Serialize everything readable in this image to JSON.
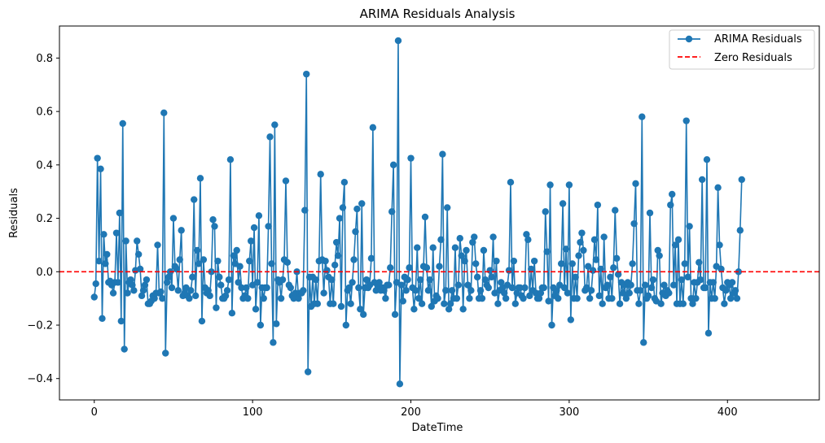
{
  "chart_data": {
    "type": "line",
    "title": "ARIMA Residuals Analysis",
    "xlabel": "DateTime",
    "ylabel": "Residuals",
    "xlim": [
      -22,
      458
    ],
    "ylim": [
      -0.48,
      0.92
    ],
    "xticks": [
      0,
      100,
      200,
      300,
      400
    ],
    "yticks": [
      -0.4,
      -0.2,
      0.0,
      0.2,
      0.4,
      0.6,
      0.8
    ],
    "xtick_labels": [
      "0",
      "100",
      "200",
      "300",
      "400"
    ],
    "ytick_labels": [
      "−0.4",
      "−0.2",
      "0.0",
      "0.2",
      "0.4",
      "0.6",
      "0.8"
    ],
    "grid": false,
    "legend_position": "top-right",
    "colors": {
      "series": "#1f77b4",
      "zero_line": "#ff0000"
    },
    "series": [
      {
        "name": "ARIMA Residuals",
        "style": "line-with-markers",
        "x_start": 0,
        "x_step": 1,
        "values": [
          -0.095,
          -0.045,
          0.425,
          0.04,
          0.385,
          -0.175,
          0.14,
          0.03,
          0.065,
          -0.04,
          -0.035,
          -0.05,
          -0.08,
          -0.04,
          0.145,
          -0.04,
          0.22,
          -0.185,
          0.555,
          -0.29,
          0.115,
          -0.08,
          -0.04,
          -0.03,
          -0.05,
          -0.07,
          0.005,
          0.115,
          0.065,
          0.01,
          -0.09,
          -0.07,
          -0.05,
          -0.03,
          -0.12,
          -0.12,
          -0.11,
          -0.09,
          -0.1,
          -0.08,
          0.1,
          -0.08,
          -0.075,
          -0.1,
          0.595,
          -0.305,
          -0.04,
          -0.02,
          0.0,
          -0.06,
          0.2,
          0.02,
          0.01,
          -0.07,
          0.045,
          0.155,
          -0.09,
          -0.08,
          -0.06,
          -0.09,
          -0.1,
          -0.07,
          -0.02,
          0.27,
          -0.09,
          0.08,
          0.03,
          0.35,
          -0.185,
          0.045,
          -0.06,
          -0.08,
          -0.07,
          -0.09,
          0.0,
          0.195,
          0.17,
          -0.135,
          0.04,
          -0.02,
          -0.05,
          -0.1,
          -0.1,
          -0.09,
          -0.07,
          -0.03,
          0.42,
          -0.155,
          0.06,
          0.03,
          0.08,
          -0.04,
          0.02,
          -0.06,
          -0.1,
          -0.09,
          -0.06,
          -0.1,
          0.04,
          0.115,
          -0.05,
          0.165,
          -0.14,
          -0.04,
          0.21,
          -0.2,
          -0.06,
          -0.1,
          -0.06,
          -0.06,
          0.17,
          0.505,
          0.03,
          -0.265,
          0.55,
          -0.195,
          -0.03,
          -0.04,
          -0.1,
          -0.03,
          0.045,
          0.34,
          0.035,
          -0.05,
          -0.06,
          -0.09,
          -0.1,
          -0.08,
          0.0,
          -0.1,
          -0.08,
          -0.08,
          -0.07,
          0.23,
          0.74,
          -0.375,
          -0.02,
          -0.13,
          -0.02,
          -0.12,
          -0.03,
          -0.12,
          0.04,
          0.365,
          0.045,
          -0.08,
          0.04,
          0.005,
          -0.02,
          -0.12,
          -0.03,
          -0.12,
          0.025,
          0.11,
          0.06,
          0.2,
          -0.13,
          0.24,
          0.335,
          -0.2,
          -0.07,
          -0.06,
          -0.12,
          -0.04,
          0.045,
          0.15,
          0.235,
          -0.06,
          -0.14,
          0.255,
          -0.16,
          -0.06,
          -0.03,
          -0.06,
          -0.05,
          0.05,
          0.54,
          -0.04,
          -0.07,
          -0.05,
          -0.04,
          -0.07,
          -0.06,
          -0.07,
          -0.1,
          -0.05,
          -0.05,
          0.015,
          0.225,
          0.4,
          -0.16,
          -0.04,
          0.865,
          -0.42,
          -0.05,
          -0.11,
          -0.02,
          -0.07,
          -0.03,
          0.015,
          0.425,
          -0.06,
          -0.14,
          -0.07,
          0.09,
          -0.1,
          -0.03,
          -0.12,
          0.02,
          0.205,
          0.015,
          -0.07,
          -0.03,
          -0.13,
          0.09,
          -0.11,
          -0.09,
          -0.1,
          0.02,
          0.12,
          0.44,
          -0.12,
          -0.07,
          0.24,
          -0.14,
          -0.12,
          -0.07,
          -0.1,
          0.09,
          -0.1,
          -0.05,
          0.125,
          0.06,
          -0.14,
          0.04,
          0.08,
          -0.05,
          -0.1,
          -0.07,
          0.11,
          0.13,
          0.03,
          -0.02,
          -0.1,
          -0.07,
          -0.1,
          0.08,
          -0.03,
          -0.05,
          -0.06,
          0.005,
          -0.02,
          0.13,
          -0.08,
          0.04,
          -0.12,
          -0.07,
          -0.04,
          -0.06,
          -0.08,
          -0.1,
          -0.05,
          0.005,
          0.335,
          -0.06,
          0.04,
          -0.12,
          -0.08,
          -0.06,
          -0.06,
          -0.09,
          -0.1,
          -0.06,
          0.14,
          0.12,
          -0.09,
          0.01,
          -0.07,
          0.04,
          -0.08,
          -0.1,
          -0.1,
          -0.08,
          -0.06,
          -0.06,
          0.225,
          0.075,
          -0.11,
          0.325,
          -0.2,
          -0.06,
          -0.09,
          -0.07,
          -0.1,
          -0.05,
          0.03,
          0.255,
          -0.06,
          0.085,
          -0.08,
          0.325,
          -0.18,
          0.03,
          -0.1,
          -0.02,
          -0.1,
          0.06,
          0.11,
          0.145,
          0.08,
          -0.07,
          -0.06,
          0.02,
          -0.1,
          -0.07,
          0.005,
          0.12,
          0.045,
          0.25,
          -0.09,
          0.01,
          -0.12,
          0.13,
          -0.06,
          -0.05,
          -0.1,
          -0.02,
          -0.1,
          0.015,
          0.23,
          0.05,
          -0.01,
          -0.12,
          -0.04,
          -0.08,
          -0.05,
          -0.1,
          -0.04,
          -0.08,
          -0.05,
          0.03,
          0.18,
          0.33,
          -0.07,
          -0.12,
          -0.07,
          0.58,
          -0.265,
          -0.05,
          -0.1,
          -0.09,
          0.22,
          -0.06,
          -0.03,
          -0.1,
          -0.11,
          0.08,
          0.06,
          -0.12,
          -0.08,
          -0.05,
          -0.09,
          -0.07,
          -0.08,
          0.25,
          0.29,
          -0.05,
          0.1,
          -0.12,
          0.12,
          -0.12,
          -0.03,
          -0.12,
          0.03,
          0.565,
          -0.02,
          0.17,
          -0.1,
          -0.12,
          -0.04,
          -0.1,
          -0.04,
          0.035,
          -0.03,
          0.345,
          -0.06,
          -0.06,
          0.42,
          -0.23,
          -0.04,
          -0.1,
          -0.04,
          -0.1,
          0.02,
          0.315,
          0.1,
          0.01,
          -0.06,
          -0.12,
          -0.07,
          -0.04,
          -0.05,
          -0.1,
          -0.04,
          -0.08,
          -0.07,
          -0.1,
          0.0,
          0.155,
          0.345
        ]
      },
      {
        "name": "Zero Residuals",
        "style": "dashed-horizontal",
        "value": 0.0
      }
    ]
  }
}
